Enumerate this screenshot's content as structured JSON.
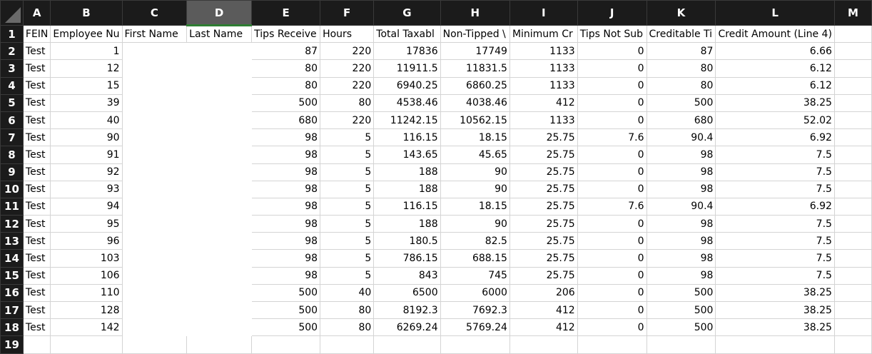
{
  "columns": [
    "A",
    "B",
    "C",
    "D",
    "E",
    "F",
    "G",
    "H",
    "I",
    "J",
    "K",
    "L",
    "M"
  ],
  "selected_column": "D",
  "header_row": [
    "FEIN",
    "Employee Number",
    "First Name",
    "Last Name",
    "Tips Received",
    "Hours",
    "Total Taxable",
    "Non-Tipped Wages",
    "Minimum Credit",
    "Tips Not Subject",
    "Creditable Tips",
    "Credit Amount (Line 4)",
    ""
  ],
  "header_row_visible": [
    "FEIN",
    "Employee Nu",
    "First Name",
    "Last Name",
    "Tips Receive",
    "Hours",
    "Total Taxabl",
    "Non-Tipped \\",
    "Minimum Cr",
    "Tips Not Sub",
    "Creditable Ti",
    "Credit Amount (Line 4)",
    ""
  ],
  "rows": [
    [
      "Test",
      "1",
      "",
      "",
      "87",
      "220",
      "17836",
      "17749",
      "1133",
      "0",
      "87",
      "6.66",
      ""
    ],
    [
      "Test",
      "12",
      "",
      "",
      "80",
      "220",
      "11911.5",
      "11831.5",
      "1133",
      "0",
      "80",
      "6.12",
      ""
    ],
    [
      "Test",
      "15",
      "",
      "",
      "80",
      "220",
      "6940.25",
      "6860.25",
      "1133",
      "0",
      "80",
      "6.12",
      ""
    ],
    [
      "Test",
      "39",
      "",
      "",
      "500",
      "80",
      "4538.46",
      "4038.46",
      "412",
      "0",
      "500",
      "38.25",
      ""
    ],
    [
      "Test",
      "40",
      "",
      "",
      "680",
      "220",
      "11242.15",
      "10562.15",
      "1133",
      "0",
      "680",
      "52.02",
      ""
    ],
    [
      "Test",
      "90",
      "",
      "",
      "98",
      "5",
      "116.15",
      "18.15",
      "25.75",
      "7.6",
      "90.4",
      "6.92",
      ""
    ],
    [
      "Test",
      "91",
      "",
      "",
      "98",
      "5",
      "143.65",
      "45.65",
      "25.75",
      "0",
      "98",
      "7.5",
      ""
    ],
    [
      "Test",
      "92",
      "",
      "",
      "98",
      "5",
      "188",
      "90",
      "25.75",
      "0",
      "98",
      "7.5",
      ""
    ],
    [
      "Test",
      "93",
      "",
      "",
      "98",
      "5",
      "188",
      "90",
      "25.75",
      "0",
      "98",
      "7.5",
      ""
    ],
    [
      "Test",
      "94",
      "",
      "",
      "98",
      "5",
      "116.15",
      "18.15",
      "25.75",
      "7.6",
      "90.4",
      "6.92",
      ""
    ],
    [
      "Test",
      "95",
      "",
      "",
      "98",
      "5",
      "188",
      "90",
      "25.75",
      "0",
      "98",
      "7.5",
      ""
    ],
    [
      "Test",
      "96",
      "",
      "",
      "98",
      "5",
      "180.5",
      "82.5",
      "25.75",
      "0",
      "98",
      "7.5",
      ""
    ],
    [
      "Test",
      "103",
      "",
      "",
      "98",
      "5",
      "786.15",
      "688.15",
      "25.75",
      "0",
      "98",
      "7.5",
      ""
    ],
    [
      "Test",
      "106",
      "",
      "",
      "98",
      "5",
      "843",
      "745",
      "25.75",
      "0",
      "98",
      "7.5",
      ""
    ],
    [
      "Test",
      "110",
      "",
      "",
      "500",
      "40",
      "6500",
      "6000",
      "206",
      "0",
      "500",
      "38.25",
      ""
    ],
    [
      "Test",
      "128",
      "",
      "",
      "500",
      "80",
      "8192.3",
      "7692.3",
      "412",
      "0",
      "500",
      "38.25",
      ""
    ],
    [
      "Test",
      "142",
      "",
      "",
      "500",
      "80",
      "6269.24",
      "5769.24",
      "412",
      "0",
      "500",
      "38.25",
      ""
    ]
  ],
  "colors": {
    "header_bg": "#1b1b1b",
    "selected_header_bg": "#5b5b5b",
    "selection_accent": "#2e7d32",
    "gridline": "#d4d4d4"
  }
}
